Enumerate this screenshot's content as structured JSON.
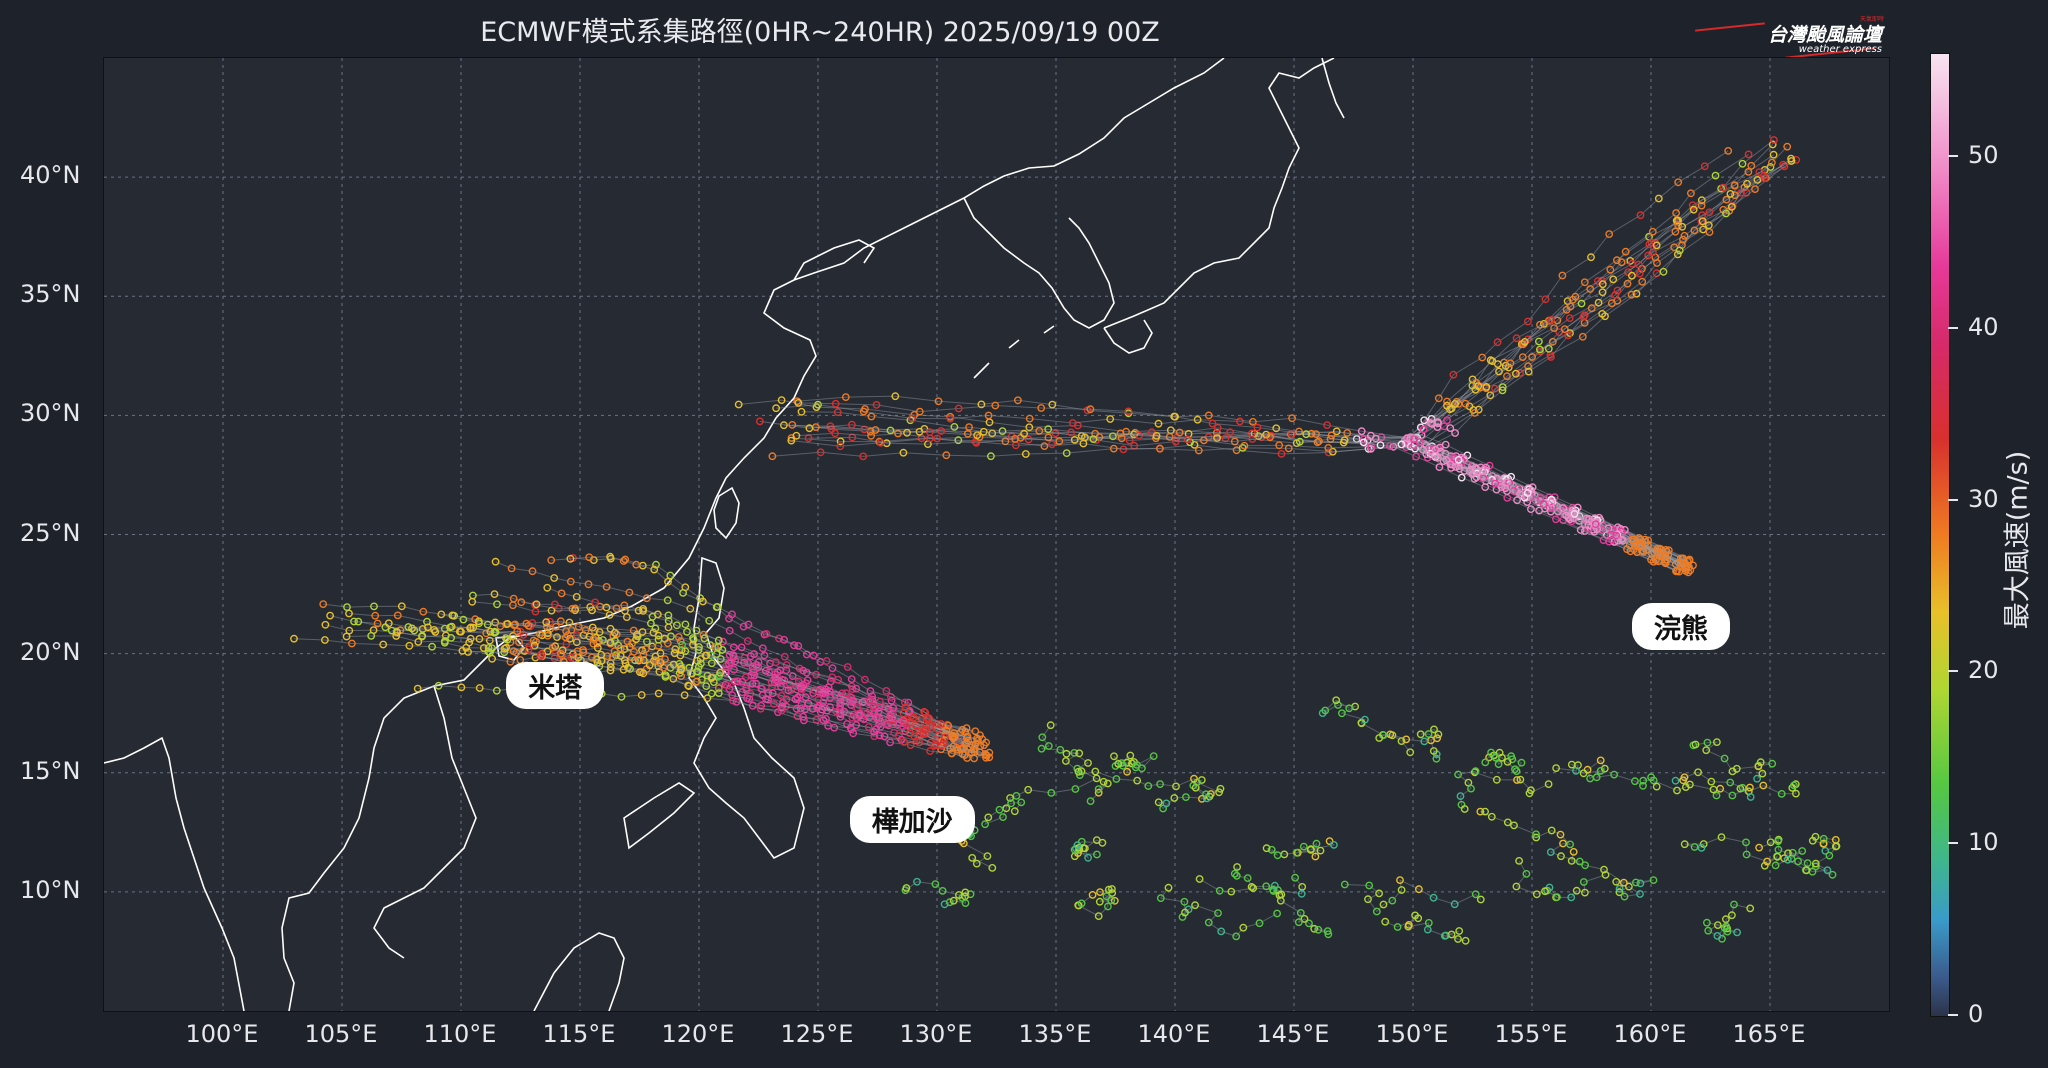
{
  "title": "ECMWF模式系集路徑(0HR~240HR) 2025/09/19 00Z",
  "logo": {
    "main": "台灣颱風論壇",
    "sub": "weather express",
    "tiny": "天氣即時"
  },
  "axes": {
    "lat_ticks": [
      "40°N",
      "35°N",
      "30°N",
      "25°N",
      "20°N",
      "15°N",
      "10°N"
    ],
    "lon_ticks": [
      "100°E",
      "105°E",
      "110°E",
      "115°E",
      "120°E",
      "125°E",
      "130°E",
      "135°E",
      "140°E",
      "145°E",
      "150°E",
      "155°E",
      "160°E",
      "165°E"
    ],
    "lon_range": [
      95,
      170
    ],
    "lat_range": [
      5,
      45
    ]
  },
  "storms": [
    {
      "name": "米塔",
      "label_lon": 114,
      "label_lat": 18.6
    },
    {
      "name": "樺加沙",
      "label_lon": 129,
      "label_lat": 13.0
    },
    {
      "name": "浣熊",
      "label_lon": 161.3,
      "label_lat": 21.1
    }
  ],
  "colorbar": {
    "label": "最大風速(m/s)",
    "ticks": [
      "50",
      "40",
      "30",
      "20",
      "10",
      "0"
    ],
    "range": [
      0,
      56
    ]
  },
  "colors": {
    "background": "#1e222b",
    "map": "#262a33",
    "coast": "#ffffff",
    "grid": "#6b7280"
  }
}
